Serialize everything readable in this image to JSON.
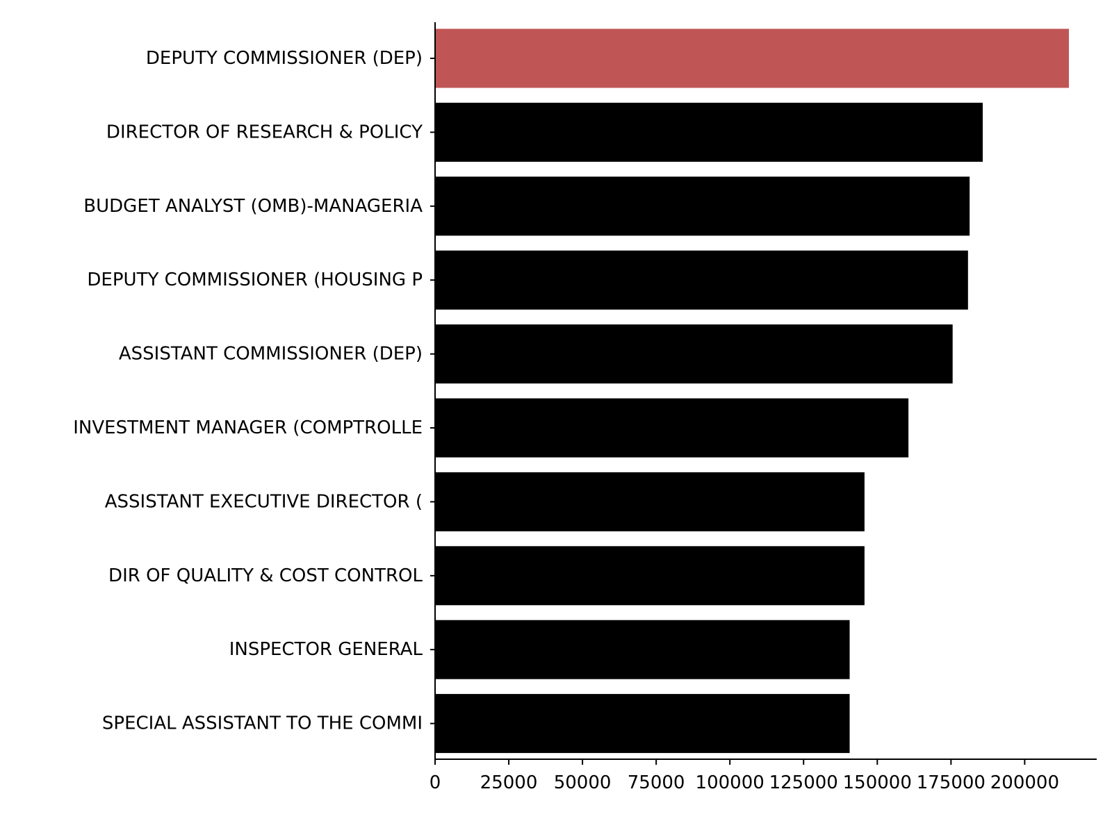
{
  "chart_data": {
    "type": "bar",
    "orientation": "horizontal",
    "categories": [
      "DEPUTY COMMISSIONER (DEP)",
      "DIRECTOR OF RESEARCH & POLICY",
      "BUDGET ANALYST (OMB)-MANAGERIA",
      "DEPUTY COMMISSIONER (HOUSING P",
      "ASSISTANT COMMISSIONER (DEP)",
      "INVESTMENT MANAGER (COMPTROLLE",
      "ASSISTANT EXECUTIVE DIRECTOR (",
      "DIR OF QUALITY & COST CONTROL",
      "INSPECTOR GENERAL",
      "SPECIAL ASSISTANT TO THE COMMI"
    ],
    "values": [
      215000,
      185767,
      181324,
      180774,
      175557,
      160570,
      145666,
      145666,
      140630,
      140630
    ],
    "highlight_index": 0,
    "colors": {
      "highlight": "#c05555",
      "default": "#000000"
    },
    "xlim": [
      0,
      225000
    ],
    "xticks": [
      "0",
      "25000",
      "50000",
      "75000",
      "100000",
      "125000",
      "150000",
      "175000",
      "200000"
    ],
    "xtick_values": [
      0,
      25000,
      50000,
      75000,
      100000,
      125000,
      150000,
      175000,
      200000
    ],
    "title": "",
    "xlabel": "",
    "ylabel": "",
    "grid": false,
    "spines": [
      "left",
      "bottom"
    ]
  }
}
